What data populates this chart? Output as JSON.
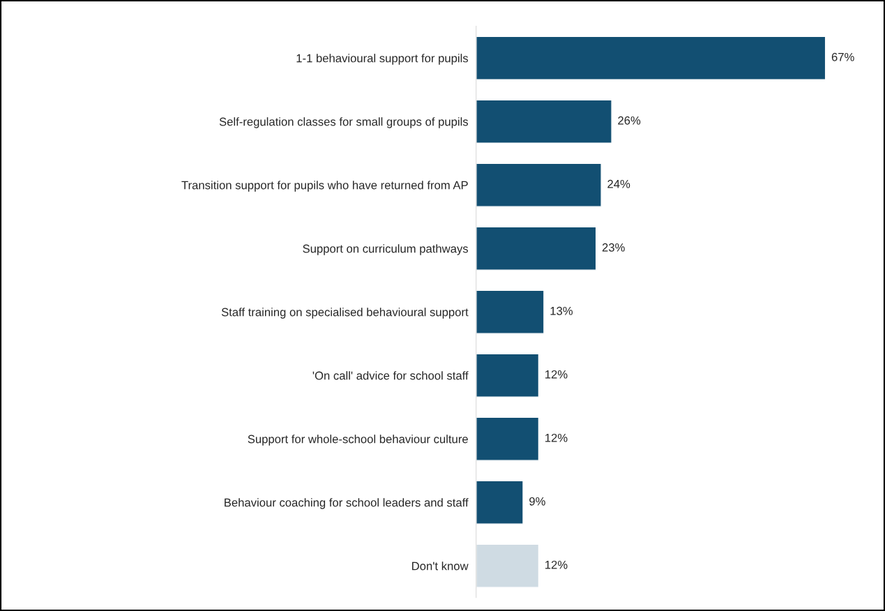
{
  "chart_data": {
    "type": "bar",
    "orientation": "horizontal",
    "categories": [
      "1-1 behavioural support for pupils",
      "Self-regulation classes for small groups of pupils",
      "Transition support for pupils who have returned from AP",
      "Support on curriculum pathways",
      "Staff training on specialised behavioural support",
      "'On call' advice for school staff",
      "Support for whole-school behaviour culture",
      "Behaviour coaching for school leaders and staff",
      "Don't know"
    ],
    "values": [
      67,
      26,
      24,
      23,
      13,
      12,
      12,
      9,
      12
    ],
    "value_labels": [
      "67%",
      "26%",
      "24%",
      "23%",
      "13%",
      "12%",
      "12%",
      "9%",
      "12%"
    ],
    "colors": [
      "#124f72",
      "#124f72",
      "#124f72",
      "#124f72",
      "#124f72",
      "#124f72",
      "#124f72",
      "#124f72",
      "#cfdbe3"
    ],
    "grid": false,
    "legend": false
  }
}
